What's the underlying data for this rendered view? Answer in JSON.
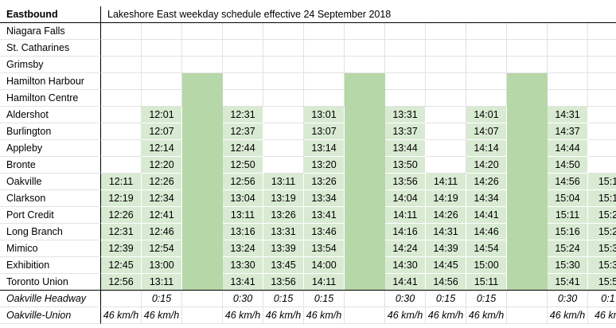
{
  "table": {
    "header": {
      "label": "Eastbound",
      "title": "Lakeshore East weekday schedule effective 24 September 2018"
    },
    "rows": [
      {
        "station": "Niagara Falls",
        "cells": [
          null,
          null,
          null,
          null,
          null,
          null,
          null,
          null,
          null,
          null,
          null,
          null,
          null
        ]
      },
      {
        "station": "St. Catharines",
        "cells": [
          null,
          null,
          null,
          null,
          null,
          null,
          null,
          null,
          null,
          null,
          null,
          null,
          null
        ]
      },
      {
        "station": "Grimsby",
        "cells": [
          null,
          null,
          null,
          null,
          null,
          null,
          null,
          null,
          null,
          null,
          null,
          null,
          null
        ]
      },
      {
        "station": "Hamilton Harbour",
        "cells": [
          null,
          null,
          null,
          null,
          null,
          null,
          null,
          null,
          null,
          null,
          null,
          null,
          null
        ]
      },
      {
        "station": "Hamilton Centre",
        "cells": [
          null,
          null,
          null,
          null,
          null,
          null,
          null,
          null,
          null,
          null,
          null,
          null,
          null
        ]
      },
      {
        "station": "Aldershot",
        "cells": [
          null,
          "12:01",
          null,
          "12:31",
          null,
          "13:01",
          null,
          "13:31",
          null,
          "14:01",
          null,
          "14:31",
          null
        ]
      },
      {
        "station": "Burlington",
        "cells": [
          null,
          "12:07",
          null,
          "12:37",
          null,
          "13:07",
          null,
          "13:37",
          null,
          "14:07",
          null,
          "14:37",
          null
        ]
      },
      {
        "station": "Appleby",
        "cells": [
          null,
          "12:14",
          null,
          "12:44",
          null,
          "13:14",
          null,
          "13:44",
          null,
          "14:14",
          null,
          "14:44",
          null
        ]
      },
      {
        "station": "Bronte",
        "cells": [
          null,
          "12:20",
          null,
          "12:50",
          null,
          "13:20",
          null,
          "13:50",
          null,
          "14:20",
          null,
          "14:50",
          null
        ]
      },
      {
        "station": "Oakville",
        "cells": [
          "12:11",
          "12:26",
          null,
          "12:56",
          "13:11",
          "13:26",
          null,
          "13:56",
          "14:11",
          "14:26",
          null,
          "14:56",
          "15:1"
        ]
      },
      {
        "station": "Clarkson",
        "cells": [
          "12:19",
          "12:34",
          null,
          "13:04",
          "13:19",
          "13:34",
          null,
          "14:04",
          "14:19",
          "14:34",
          null,
          "15:04",
          "15:1"
        ]
      },
      {
        "station": "Port Credit",
        "cells": [
          "12:26",
          "12:41",
          null,
          "13:11",
          "13:26",
          "13:41",
          null,
          "14:11",
          "14:26",
          "14:41",
          null,
          "15:11",
          "15:2"
        ]
      },
      {
        "station": "Long Branch",
        "cells": [
          "12:31",
          "12:46",
          null,
          "13:16",
          "13:31",
          "13:46",
          null,
          "14:16",
          "14:31",
          "14:46",
          null,
          "15:16",
          "15:2"
        ]
      },
      {
        "station": "Mimico",
        "cells": [
          "12:39",
          "12:54",
          null,
          "13:24",
          "13:39",
          "13:54",
          null,
          "14:24",
          "14:39",
          "14:54",
          null,
          "15:24",
          "15:3"
        ]
      },
      {
        "station": "Exhibition",
        "cells": [
          "12:45",
          "13:00",
          null,
          "13:30",
          "13:45",
          "14:00",
          null,
          "14:30",
          "14:45",
          "15:00",
          null,
          "15:30",
          "15:3"
        ]
      },
      {
        "station": "Toronto Union",
        "cells": [
          "12:56",
          "13:11",
          null,
          "13:41",
          "13:56",
          "14:11",
          null,
          "14:41",
          "14:56",
          "15:11",
          null,
          "15:41",
          "15:5"
        ]
      }
    ],
    "footer_rows": [
      {
        "station": "Oakville Headway",
        "cells": [
          null,
          "0:15",
          null,
          "0:30",
          "0:15",
          "0:15",
          null,
          "0:30",
          "0:15",
          "0:15",
          null,
          "0:30",
          "0:1"
        ]
      },
      {
        "station": "Oakville-Union",
        "cells": [
          "46 km/h",
          "46 km/h",
          null,
          "46 km/h",
          "46 km/h",
          "46 km/h",
          null,
          "46 km/h",
          "46 km/h",
          "46 km/h",
          null,
          "46 km/h",
          "46 km"
        ]
      }
    ]
  }
}
